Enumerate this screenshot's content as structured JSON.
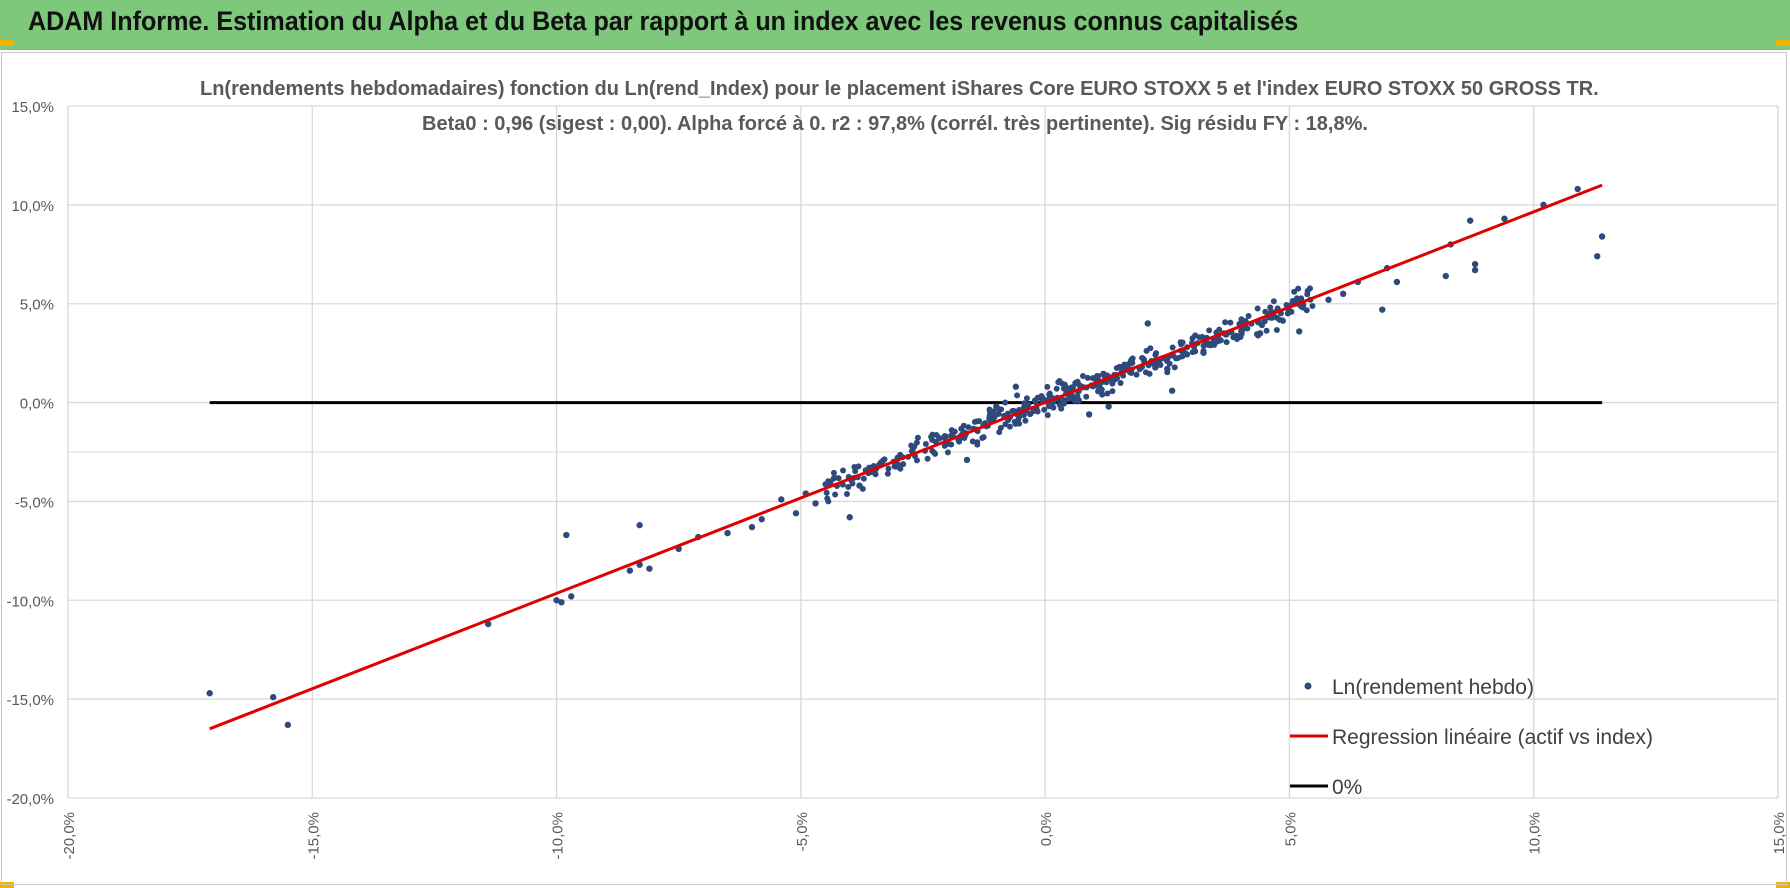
{
  "banner": {
    "title": "ADAM Informe. Estimation du Alpha et du Beta par rapport à un index avec les revenus connus capitalisés"
  },
  "colors": {
    "banner": "#7ec87c",
    "points": "#2e4a7c",
    "regression": "#e00000",
    "zero_line": "#000000",
    "grid": "#d9d9d9"
  },
  "chart_data": {
    "type": "scatter",
    "title": "Ln(rendements hebdomadaires) fonction du Ln(rend_Index) pour le placement iShares Core EURO STOXX 5 et l'index EURO STOXX 50 GROSS TR.",
    "subtitle": "Beta0 : 0,96 (sigest : 0,00). Alpha forcé à 0. r2 : 97,8% (corrél. très pertinente). Sig résidu FY : 18,8%.",
    "xlabel": "",
    "ylabel": "",
    "xlim": [
      -20,
      15
    ],
    "ylim": [
      -20,
      15
    ],
    "x_ticks": [
      -20,
      -15,
      -10,
      -5,
      0,
      5,
      10,
      15
    ],
    "y_ticks": [
      15,
      10,
      5,
      0,
      -5,
      -10,
      -15,
      -20
    ],
    "x_tick_labels": [
      "-20,0%",
      "-15,0%",
      "-10,0%",
      "-5,0%",
      "0,0%",
      "5,0%",
      "10,0%",
      "15,0%"
    ],
    "y_tick_labels": [
      "15,0%",
      "10,0%",
      "5,0%",
      "0,0%",
      "-5,0%",
      "-10,0%",
      "-15,0%",
      "-20,0%"
    ],
    "grid": true,
    "legend_position": "bottom-right",
    "series": [
      {
        "name": "Ln(rendement hebdo)",
        "kind": "scatter",
        "outliers": [
          [
            -17.1,
            -14.7
          ],
          [
            -15.8,
            -14.9
          ],
          [
            -15.5,
            -16.3
          ],
          [
            -11.4,
            -11.2
          ],
          [
            -10.0,
            -10.0
          ],
          [
            -9.9,
            -10.1
          ],
          [
            -9.7,
            -9.8
          ],
          [
            -9.8,
            -6.7
          ],
          [
            -8.5,
            -8.5
          ],
          [
            -8.3,
            -8.2
          ],
          [
            -8.3,
            -6.2
          ],
          [
            -8.1,
            -8.4
          ],
          [
            -7.5,
            -7.4
          ],
          [
            -7.1,
            -6.8
          ],
          [
            -6.5,
            -6.6
          ],
          [
            -6.0,
            -6.3
          ],
          [
            -5.8,
            -5.9
          ],
          [
            -5.4,
            -4.9
          ],
          [
            -5.1,
            -5.6
          ],
          [
            -4.9,
            -4.6
          ],
          [
            -4.7,
            -5.1
          ],
          [
            -4.0,
            -5.8
          ],
          [
            -3.8,
            -4.2
          ],
          [
            -3.6,
            -3.3
          ],
          [
            -1.6,
            -2.9
          ],
          [
            -1.0,
            -0.2
          ],
          [
            -0.6,
            0.8
          ],
          [
            0.4,
            0.9
          ],
          [
            0.9,
            -0.6
          ],
          [
            1.3,
            -0.2
          ],
          [
            2.1,
            4.0
          ],
          [
            2.5,
            1.7
          ],
          [
            2.6,
            0.6
          ],
          [
            4.4,
            3.5
          ],
          [
            5.0,
            4.9
          ],
          [
            5.2,
            3.6
          ],
          [
            5.8,
            5.2
          ],
          [
            6.1,
            5.5
          ],
          [
            6.4,
            6.1
          ],
          [
            6.9,
            4.7
          ],
          [
            7.0,
            6.8
          ],
          [
            7.2,
            6.1
          ],
          [
            8.2,
            6.4
          ],
          [
            8.3,
            8.0
          ],
          [
            8.7,
            9.2
          ],
          [
            8.8,
            7.0
          ],
          [
            8.8,
            6.7
          ],
          [
            9.4,
            9.3
          ],
          [
            10.2,
            10.0
          ],
          [
            10.9,
            10.8
          ],
          [
            11.3,
            7.4
          ],
          [
            11.4,
            8.4
          ]
        ],
        "cloud": {
          "beta": 0.96,
          "x_range": [
            -4.5,
            5.5
          ],
          "points": 450,
          "residual_sd": 0.35
        }
      },
      {
        "name": "Regression linéaire (actif vs index)",
        "kind": "line",
        "x": [
          -17.1,
          11.4
        ],
        "y": [
          -16.5,
          11.0
        ]
      },
      {
        "name": "0%",
        "kind": "line",
        "x": [
          -17.1,
          11.4
        ],
        "y": [
          0,
          0
        ]
      }
    ]
  }
}
